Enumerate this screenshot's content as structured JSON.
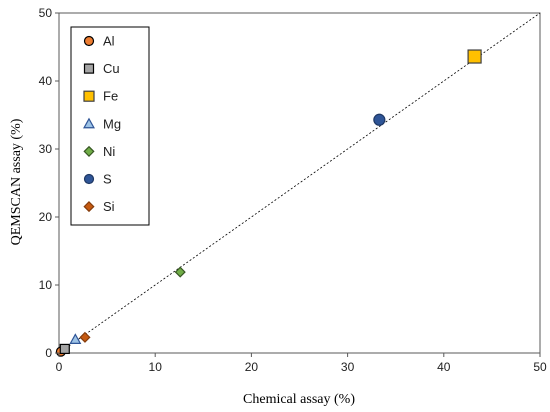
{
  "chart_data": {
    "type": "scatter",
    "xlabel": "Chemical assay (%)",
    "ylabel": "QEMSCAN assay (%)",
    "xlim": [
      0,
      50
    ],
    "ylim": [
      0,
      50
    ],
    "xticks": [
      0,
      10,
      20,
      30,
      40,
      50
    ],
    "yticks": [
      0,
      10,
      20,
      30,
      40,
      50
    ],
    "grid": false,
    "legend_placement": "top-left",
    "reference_line": {
      "type": "y=x",
      "style": "dotted"
    },
    "series": [
      {
        "name": "Al",
        "marker": "circle",
        "fill": "#ed7d31",
        "stroke": "#000000",
        "x": [
          0.2
        ],
        "y": [
          0.2
        ]
      },
      {
        "name": "Cu",
        "marker": "square",
        "fill": "#a5a5a5",
        "stroke": "#000000",
        "x": [
          0.6
        ],
        "y": [
          0.6
        ]
      },
      {
        "name": "Fe",
        "marker": "square",
        "fill": "#ffc000",
        "stroke": "#404040",
        "x": [
          43.2
        ],
        "y": [
          43.6
        ]
      },
      {
        "name": "Mg",
        "marker": "triangle",
        "fill": "#9dc3e6",
        "stroke": "#2f5597",
        "x": [
          1.7
        ],
        "y": [
          2.0
        ]
      },
      {
        "name": "Ni",
        "marker": "diamond",
        "fill": "#70ad47",
        "stroke": "#375623",
        "x": [
          12.6
        ],
        "y": [
          11.9
        ]
      },
      {
        "name": "S",
        "marker": "circle",
        "fill": "#2f5597",
        "stroke": "#1f3864",
        "x": [
          33.3
        ],
        "y": [
          34.3
        ]
      },
      {
        "name": "Si",
        "marker": "diamond",
        "fill": "#c55a11",
        "stroke": "#843c0c",
        "x": [
          2.7
        ],
        "y": [
          2.3
        ]
      }
    ]
  }
}
